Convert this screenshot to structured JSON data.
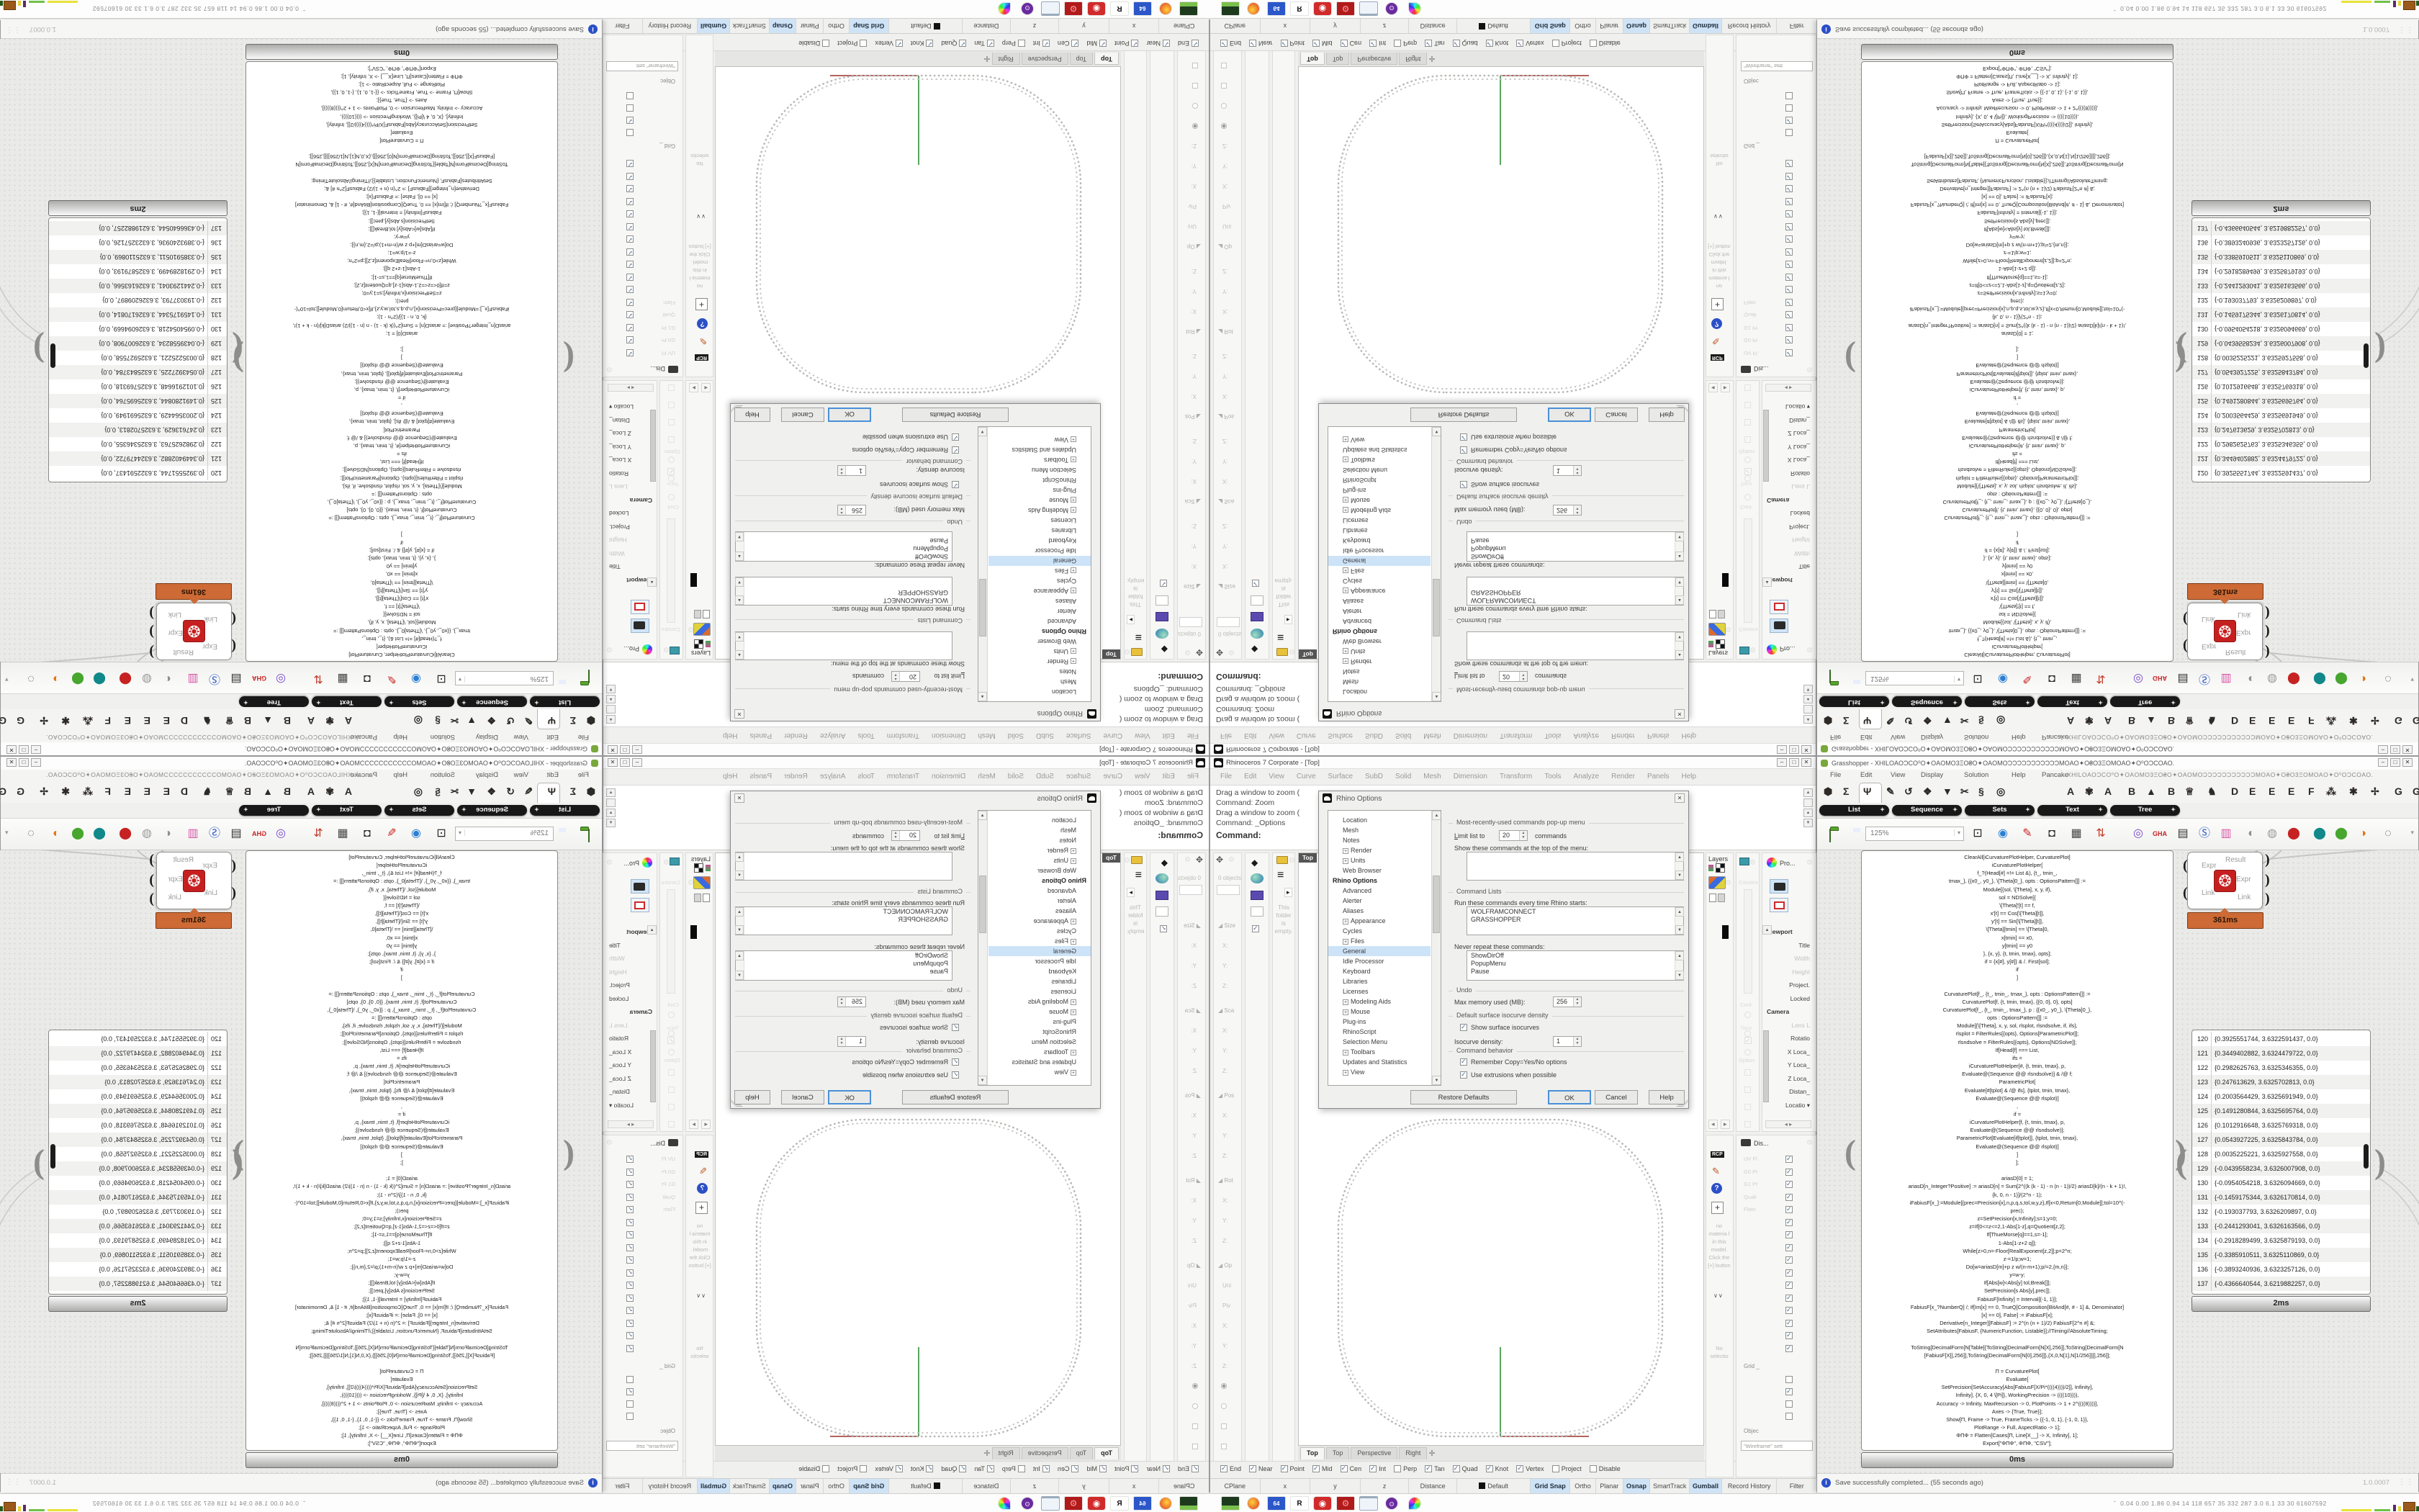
{
  "rhino": {
    "title": "Rhinoceros 7 Corporate - [Top]",
    "window_buttons": [
      "–",
      "□",
      "✕"
    ],
    "menus": [
      "File",
      "Edit",
      "View",
      "Curve",
      "Surface",
      "SubD",
      "Solid",
      "Mesh",
      "Dimension",
      "Transform",
      "Tools",
      "Analyze",
      "Render",
      "Panels",
      "Help"
    ],
    "command_lines": [
      "Drag a window to zoom (",
      "Command: Zoom",
      "Drag a window to zoom (",
      "Command: _Options"
    ],
    "command_prompt": "Command:",
    "left_dock": {
      "object_count": "0 objects",
      "boxedit_rows": [
        {
          "t": "sec",
          "l": "Size"
        },
        {
          "t": "f",
          "l": "X:"
        },
        {
          "t": "f",
          "l": "Y:"
        },
        {
          "t": "f",
          "l": "Z:"
        },
        {
          "t": "sec",
          "l": "Sca"
        },
        {
          "t": "f",
          "l": "X:"
        },
        {
          "t": "f",
          "l": "Y:"
        },
        {
          "t": "f",
          "l": "Z:"
        },
        {
          "t": "sec",
          "l": "Pos"
        },
        {
          "t": "f",
          "l": "X:"
        },
        {
          "t": "f",
          "l": "Y:"
        },
        {
          "t": "f",
          "l": "Z:"
        },
        {
          "t": "sec",
          "l": "Rot"
        },
        {
          "t": "f",
          "l": "X:"
        },
        {
          "t": "f",
          "l": "Y:"
        },
        {
          "t": "f",
          "l": "Z:"
        },
        {
          "t": "sec",
          "l": "Op"
        },
        {
          "t": "f",
          "l": "Uni"
        },
        {
          "t": "f",
          "l": "Piv"
        },
        {
          "t": "f",
          "l": "X:"
        },
        {
          "t": "f",
          "l": "Y:"
        },
        {
          "t": "f",
          "l": "Z:"
        },
        {
          "t": "radio-on",
          "l": ""
        },
        {
          "t": "radio-off",
          "l": ""
        },
        {
          "t": "box",
          "l": ""
        },
        {
          "t": "box",
          "l": ""
        },
        {
          "t": "box",
          "l": ""
        }
      ],
      "folder_text": "This folder is empty."
    },
    "viewport": {
      "label": "Top",
      "tabs": [
        "Top",
        "Top",
        "Perspective",
        "Right"
      ],
      "active_tab": 0,
      "new_tab_glyph": "✛"
    },
    "osnap": [
      {
        "l": "End",
        "c": true
      },
      {
        "l": "Near",
        "c": true
      },
      {
        "l": "Point",
        "c": true
      },
      {
        "l": "Mid",
        "c": true
      },
      {
        "l": "Cen",
        "c": true
      },
      {
        "l": "Int",
        "c": true
      },
      {
        "l": "Perp",
        "c": false
      },
      {
        "l": "Tan",
        "c": true
      },
      {
        "l": "Quad",
        "c": true
      },
      {
        "l": "Knot",
        "c": true
      },
      {
        "l": "Vertex",
        "c": true
      },
      {
        "l": "Project",
        "c": false
      },
      {
        "l": "Disable",
        "c": false
      }
    ],
    "status_cells": [
      {
        "l": "CPlane",
        "w": 70
      },
      {
        "l": "x",
        "w": 70
      },
      {
        "l": "y",
        "w": 70
      },
      {
        "l": "z",
        "w": 68
      },
      {
        "l": "Distance",
        "w": 67
      },
      {
        "l": "Default",
        "w": 103,
        "swatch": true
      },
      {
        "l": "Grid Snap",
        "w": 55,
        "hl": true
      },
      {
        "l": "Ortho",
        "w": 36
      },
      {
        "l": "Planar",
        "w": 38
      },
      {
        "l": "Osnap",
        "w": 38,
        "hl": true
      },
      {
        "l": "SmartTrack",
        "w": 55
      },
      {
        "l": "Gumball",
        "w": 45,
        "hl": true
      },
      {
        "l": "Record History",
        "w": 77
      },
      {
        "l": "Filter",
        "w": 56
      }
    ],
    "right_dock": {
      "layers_title": "Layers",
      "ghost_labels": [
        "Constra",
        "Cont",
        "Tapa",
        "Option"
      ],
      "properties": {
        "title": "Pro...",
        "rows": [
          {
            "l": "Viewport",
            "t": "sec"
          },
          {
            "l": "Title"
          },
          {
            "l": "Width",
            "m": true
          },
          {
            "l": "Height",
            "m": true
          },
          {
            "l": "Project."
          },
          {
            "l": "Locked"
          },
          {
            "l": "Camera",
            "t": "sec"
          },
          {
            "l": "Lens L",
            "m": true
          },
          {
            "l": "Rotatio"
          },
          {
            "l": "X Loca_"
          },
          {
            "l": "Y Loca_"
          },
          {
            "l": "Z Loca_"
          },
          {
            "l": "Distan_"
          },
          {
            "l": "Locatio"
          }
        ]
      },
      "materials": {
        "badge": "RCP",
        "help": "?",
        "empty_text": "no materia l in this model. Click the [+] button",
        "chevrons": "∨∨",
        "selection": "No selectio"
      },
      "display": {
        "title": "Dis...",
        "check_labels": [
          "UV Fl",
          "G0 Pr",
          "G1 Pr",
          "Quali",
          "Flatn",
          "",
          "",
          "",
          "",
          "",
          "",
          "",
          "",
          "",
          "",
          ""
        ],
        "grid_label": "Grid _",
        "object_label": "Objec",
        "wireframe_value": "\"Wireframe\" sett"
      }
    },
    "dialog": {
      "title": "Rhino Options",
      "tree": [
        {
          "l": "Location",
          "ind": 1
        },
        {
          "l": "Mesh",
          "ind": 1
        },
        {
          "l": "Notes",
          "ind": 1
        },
        {
          "l": "Render",
          "ind": 1,
          "pm": true
        },
        {
          "l": "Units",
          "ind": 1,
          "pm": true
        },
        {
          "l": "Web Browser",
          "ind": 1
        },
        {
          "l": "Rhino Options",
          "ind": 0,
          "header": true
        },
        {
          "l": "Advanced",
          "ind": 1
        },
        {
          "l": "Alerter",
          "ind": 1
        },
        {
          "l": "Aliases",
          "ind": 1
        },
        {
          "l": "Appearance",
          "ind": 1,
          "pm": true
        },
        {
          "l": "Cycles",
          "ind": 1
        },
        {
          "l": "Files",
          "ind": 1,
          "pm": true
        },
        {
          "l": "General",
          "ind": 1,
          "selected": true
        },
        {
          "l": "Idle Processor",
          "ind": 1
        },
        {
          "l": "Keyboard",
          "ind": 1
        },
        {
          "l": "Libraries",
          "ind": 1
        },
        {
          "l": "Licenses",
          "ind": 1
        },
        {
          "l": "Modeling Aids",
          "ind": 1,
          "pm": true
        },
        {
          "l": "Mouse",
          "ind": 1,
          "pm": true
        },
        {
          "l": "Plug-ins",
          "ind": 1
        },
        {
          "l": "RhinoScript",
          "ind": 1
        },
        {
          "l": "Selection Menu",
          "ind": 1
        },
        {
          "l": "Toolbars",
          "ind": 1,
          "pm": true
        },
        {
          "l": "Updates and Statistics",
          "ind": 1
        },
        {
          "l": "View",
          "ind": 1,
          "pm": true
        }
      ],
      "mru_title": "Most-recently-used commands pop-up menu",
      "limit_label": "Limit list to",
      "limit_value": "20",
      "limit_suffix": "commands",
      "show_label": "Show these commands at the top of the menu:",
      "cmdlists_title": "Command Lists",
      "run_label": "Run these commands every time Rhino starts:",
      "run_items": [
        "WOLFRAMCONNECT",
        "GRASSHOPPER"
      ],
      "never_label": "Never repeat these commands:",
      "never_items": [
        "ShowDirOff",
        "PopupMenu",
        "Pause"
      ],
      "undo_title": "Undo",
      "undo_label": "Max memory used (MB):",
      "undo_value": "256",
      "iso_title": "Default surface isocurve density",
      "iso_check": "Show surface isocurves",
      "iso_label": "Isocurve density:",
      "iso_value": "1",
      "behavior_title": "Command behavior",
      "behavior_check1": "Remember Copy=Yes/No options",
      "behavior_check2": "Use extrusions when possible",
      "buttons": [
        "Restore Defaults",
        "OK",
        "Cancel",
        "Help"
      ]
    }
  },
  "grasshopper": {
    "title": "Grasshopper - XHILOAOƆCO⁰O✦OAOMO3ΞO₴O✦OAOMOƆƆƆƆƆƆƆƆƆƆƆMOAO✦O₴O3ΞOMOAO✦O⁰OƆCOAO.",
    "file_glyphs": "XHILOAOƆCO⁰O✦OAOMO3ΞO₴O✦OAOMOƆƆƆƆƆƆƆƆƆƆƆMOAO✦O₴O3ΞOMOAO✦O⁰OƆCOAO.",
    "menus": [
      "File",
      "Edit",
      "View",
      "Display",
      "Solution",
      "Help",
      "Pancake"
    ],
    "tab_glyphs": [
      "⬢",
      "Σ",
      "Ψ",
      "✎",
      "↺",
      "❖",
      "▼",
      "✂",
      "§",
      "◎",
      "A",
      "✾",
      "A",
      "B",
      "▲",
      "B",
      "♕",
      "♞",
      "D",
      "E",
      "E",
      "E",
      "F",
      "⁂",
      "✱",
      "✢",
      "G",
      "G"
    ],
    "pills": [
      "List",
      "Sequence",
      "Sets",
      "Text",
      "Tree"
    ],
    "zoom_value": "125%",
    "toolbar_glyphs": [
      {
        "g": "⊡",
        "c": "#222"
      },
      {
        "g": "◉",
        "c": "#2b7fd4"
      },
      {
        "g": "✎",
        "c": "#c62222"
      },
      {
        "g": "◘",
        "c": "#333"
      },
      {
        "g": "▦",
        "c": "#444"
      },
      {
        "g": "⇅",
        "c": "#c33b2a"
      },
      {
        "g": "◎",
        "c": "#7a4bd0"
      },
      {
        "g": "GHA",
        "c": "#c62222"
      },
      {
        "g": "▤",
        "c": "#333"
      },
      {
        "g": "Ⓢ",
        "c": "#2b57c8"
      },
      {
        "g": "▥",
        "c": "#d957a8"
      },
      {
        "g": "◐",
        "c": "#8f8f8d"
      },
      {
        "g": "◍",
        "c": "#9a9a98"
      },
      {
        "g": "⬤",
        "c": "#c62222"
      },
      {
        "g": "⬤",
        "c": "#11888a"
      },
      {
        "g": "⬤",
        "c": "#46a62e"
      },
      {
        "g": "◑",
        "c": "#dd7711"
      },
      {
        "g": "◌",
        "c": "#44506a"
      }
    ],
    "component": {
      "inputs": [
        "Expr",
        "Link"
      ],
      "outputs": [
        "Result",
        "Expr",
        "Link"
      ],
      "icon_glyph": "❂",
      "runtime": "361ms"
    },
    "code_panel": {
      "runtime": "0ms",
      "lines": [
        "ClearAll[iCurvaturePlotHelper, CurvaturePlot]",
        "iCurvaturePlotHelper[",
        "f_?(Head[#] =!= List &), {t_, tmin_,",
        "tmax_}, {{x0_, y0_}, \\[Theta]0_}, opts : OptionsPattern[]] :=",
        "Module[{sol, \\[Theta], x, y, if},",
        "sol = NDSolve[{",
        "\\[Theta]'[t] == f,",
        "x'[t] == Cos[\\[Theta][t]],",
        "y'[t] == Sin[\\[Theta][t]],",
        "\\[Theta][tmin] == \\[Theta]0,",
        "x[tmin] == x0,",
        "y[tmin] == y0",
        "}, {x, y}, {t, tmin, tmax}, opts];",
        "if = {x[#], y[#]} & /. First[sol];",
        "if",
        "]",
        "",
        "CurvaturePlot[f_, {t_, tmin_, tmax_}, opts : OptionsPattern[]] :=",
        "CurvaturePlot[f, {t, tmin, tmax}, {{0, 0}, 0}, opts]",
        "CurvaturePlot[f_, {t_, tmin_, tmax_}, p : {{x0_, y0_}, \\[Theta]0_},",
        "opts : OptionsPattern[]] :=",
        "Module[{\\[Theta], x, y, sol, rlsplot, rlsndsolve, if, ifs},",
        "rlsplot = FilterRules[{opts}, Options[ParametricPlot]];",
        "rlsndsolve = FilterRules[{opts}, Options[NDSolve]];",
        "If[Head[f] === List,",
        "ifs =",
        "iCurvaturePlotHelper[#, {t, tmin, tmax}, p,",
        "Evaluate@(Sequence @@ rlsndsolve)] & /@ f;",
        "ParametricPlot[",
        "Evaluate[#[tplot] & /@ ifs], {tplot, tmin, tmax},",
        "Evaluate@(Sequence @@ rlsplot)]",
        ",",
        "if =",
        "iCurvaturePlotHelper[f, {t, tmin, tmax}, p,",
        "Evaluate@(Sequence @@ rlsndsolve)];",
        "ParametricPlot[Evaluate[if[tplot]], {tplot, tmin, tmax},",
        "Evaluate@(Sequence @@ rlsplot)]",
        "]",
        "];",
        "",
        "ariasD[0] = 1;",
        "ariasD[n_Integer?Positive] := ariasD[n] = Sum[2^((k (k - 1) - n (n - 1))/2) ariasD[k]/(n - k + 1)!,",
        "{k, 0, n - 1}]/(2^n - 1);",
        "iFabiusF[x_]:=Module[{prec=Precision[x],n,p,q,s,tol,w,y,z},If[x<0,Return[0,Module]];tol=10^(-",
        "prec);",
        "z=SetPrecision[x,Infinity];s=1;y=0;",
        "z=If[0<=z<=2,1-Abs[1-z],q=Quotient[z,2];",
        "If[ThueMorse[q]==1,s=-1];",
        "1-Abs[1-z+2 q]];",
        "While[z>0,n=-Floor[RealExponent[z,2]];p=2^n;",
        "z-=1/p;w=1;",
        "Do[w=ariasD[m]+p z w/(n-m+1);p/=2,{m,n}];",
        "y=w-y;",
        "If[Abs[w]<Abs[y] tol,Break[]];",
        "SetPrecision[s Abs[y],prec]];",
        "FabiusF[Infinity] = Interval[{-1, 1}];",
        "FabiusF[x_?NumberQ] /; If[Im[x] == 0, TrueQ[Composition[BitAnd[#, # - 1] &, Denominator]",
        "[x] == 0], False] := iFabiusF[x];",
        "Derivative[n_Integer][FabiusF] := 2^(n (n + 1)/2) FabiusF[2^n #] &;",
        "SetAttributes[FabiusF, {NumericFunction, Listable}];//Timing//AbsoluteTiming;",
        "",
        "ToString[DecimalForm[N[Table[{ToString[DecimalForm[N[X],256]],ToString[DecimalForm[N",
        "[FabiusF[X]],256]],ToString[DecimalForm[N[0],256]]},{X,0,N[1],N[1/256]}]],256]];",
        "",
        "Π = CurvaturePlot[",
        "Evaluate[",
        "SetPrecision[SetAccuracy[Abs[FabiusF[X/Pi*((((4))))/2]], Infinity],",
        "Infinity], {X, 0, 4 \\[Pi]}, WorkingPrecision -> ((((10)))),",
        "Accuracy -> Infinity, MaxRecursion -> 0, PlotPoints -> 1 + 2^((((8))))],",
        "Axes -> {True, True}];",
        "Show[Π, Frame -> True, FrameTicks -> {{-1, 0, 1}, {-1, 0, 1}},",
        "PlotRange -> Full, AspectRatio -> 1];",
        "ΦΠΦ = Flatten[Cases[Π, Line[X__] -> X, Infinity], 1];",
        "Export[\"ΦΠΦ\", ΦΠΦ, \"CSV\"];",
        "ΦΠΦ"
      ]
    },
    "data_panel": {
      "runtime": "2ms",
      "rows": [
        {
          "i": "120",
          "v": "{0.3925551744, 3.6322591437, 0.0}"
        },
        {
          "i": "121",
          "v": "{0.3449402882, 3.6324479722, 0.0}"
        },
        {
          "i": "122",
          "v": "{0.2982625763, 3.6325346355, 0.0}"
        },
        {
          "i": "123",
          "v": "{0.247613629, 3.6325702813, 0.0}"
        },
        {
          "i": "124",
          "v": "{0.2003564429, 3.6325691949, 0.0}"
        },
        {
          "i": "125",
          "v": "{0.1491280844, 3.6325695764, 0.0}"
        },
        {
          "i": "126",
          "v": "{0.1012916648, 3.6325769318, 0.0}"
        },
        {
          "i": "127",
          "v": "{0.0543927225, 3.6325843784, 0.0}"
        },
        {
          "i": "128",
          "v": "{0.0035225221, 3.6325927558, 0.0}"
        },
        {
          "i": "129",
          "v": "{-0.0439558234, 3.6326007908, 0.0}"
        },
        {
          "i": "130",
          "v": "{-0.0954054218, 3.6326094669, 0.0}"
        },
        {
          "i": "131",
          "v": "{-0.1459175344, 3.6326170814, 0.0}"
        },
        {
          "i": "132",
          "v": "{-0.193037793, 3.6326209897, 0.0}"
        },
        {
          "i": "133",
          "v": "{-0.2441293041, 3.6326163566, 0.0}"
        },
        {
          "i": "134",
          "v": "{-0.2918289499, 3.6325879193, 0.0}"
        },
        {
          "i": "135",
          "v": "{-0.3385910511, 3.6325110869, 0.0}"
        },
        {
          "i": "136",
          "v": "{-0.3893240936, 3.6323257126, 0.0}"
        },
        {
          "i": "137",
          "v": "{-0.4366640544, 3.6219882257, 0.0}"
        }
      ]
    },
    "status_message": "Save successfully completed... (55 seconds ago)",
    "status_version": "1.0.0007",
    "status_grip": "⋮⋮"
  },
  "taskbar": {
    "icons": [
      "recorder",
      "firefox",
      "hxd-64",
      "rhino",
      "red-target",
      "red-gear",
      "notepad",
      "purple-app",
      "palette"
    ],
    "icon_labels": {
      "hxd": "64"
    },
    "stats": "0.04 0.00 1.86 0.94   14   118   657   35   332   287   3.0   6.1   33   30   61607592",
    "stats_glyph": "ˆ"
  }
}
